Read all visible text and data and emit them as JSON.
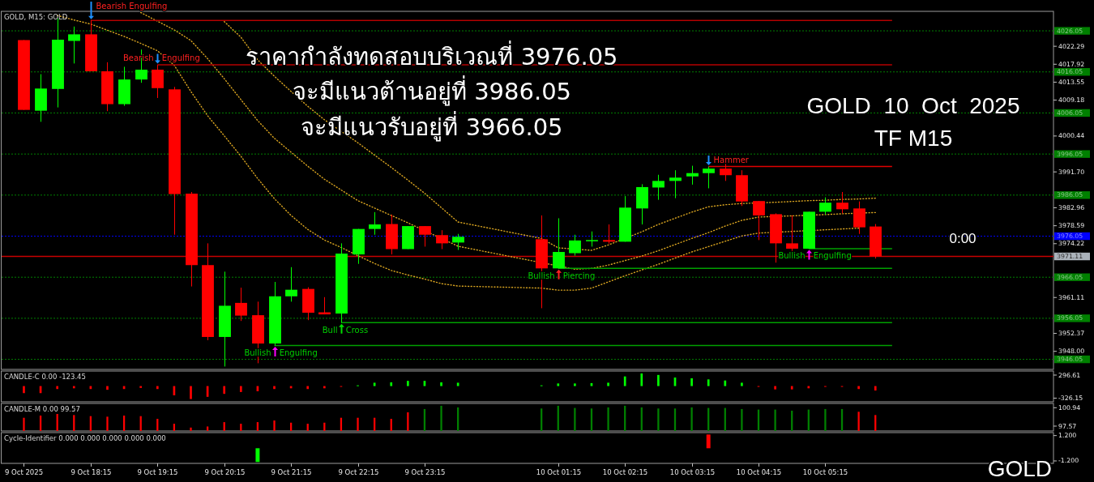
{
  "chart_data": [
    {
      "type": "candlestick",
      "title": "GOLD, M15: GOLD",
      "x": [
        "2025-10-09T17:15",
        "2025-10-09T17:30",
        "2025-10-09T17:45",
        "2025-10-09T18:00",
        "2025-10-09T18:15",
        "2025-10-09T18:30",
        "2025-10-09T18:45",
        "2025-10-09T19:00",
        "2025-10-09T19:15",
        "2025-10-09T19:30",
        "2025-10-09T19:45",
        "2025-10-09T20:00",
        "2025-10-09T20:15",
        "2025-10-09T20:30",
        "2025-10-09T20:45",
        "2025-10-09T21:00",
        "2025-10-09T21:15",
        "2025-10-09T21:30",
        "2025-10-09T21:45",
        "2025-10-09T22:00",
        "2025-10-09T22:15",
        "2025-10-09T22:30",
        "2025-10-09T22:45",
        "2025-10-09T23:00",
        "2025-10-09T23:15",
        "2025-10-09T23:30",
        "2025-10-09T23:45",
        "2025-10-10T01:00",
        "2025-10-10T01:15",
        "2025-10-10T01:30",
        "2025-10-10T01:45",
        "2025-10-10T02:00",
        "2025-10-10T02:15",
        "2025-10-10T02:30",
        "2025-10-10T02:45",
        "2025-10-10T03:00",
        "2025-10-10T03:15",
        "2025-10-10T03:30",
        "2025-10-10T03:45",
        "2025-10-10T04:00",
        "2025-10-10T04:15",
        "2025-10-10T04:30",
        "2025-10-10T04:45",
        "2025-10-10T05:00",
        "2025-10-10T05:15",
        "2025-10-10T05:30",
        "2025-10-10T05:45",
        "2025-10-10T06:00"
      ],
      "ohlc": [
        [
          4023.8,
          4023.8,
          4006.8,
          4006.8
        ],
        [
          4006.6,
          4015.5,
          4003.9,
          4012.0
        ],
        [
          4011.9,
          4029.1,
          4007.4,
          4023.9
        ],
        [
          4023.6,
          4027.1,
          4018.1,
          4025.2
        ],
        [
          4025.2,
          4028.6,
          4016.2,
          4016.2
        ],
        [
          4016.2,
          4018.4,
          4006.5,
          4008.2
        ],
        [
          4008.2,
          4017.3,
          4007.8,
          4014.2
        ],
        [
          4014.2,
          4021.5,
          4013.4,
          4016.6
        ],
        [
          4016.6,
          4017.8,
          4009.7,
          4012.1
        ],
        [
          4011.8,
          4012.4,
          3976.4,
          3986.3
        ],
        [
          3986.4,
          3986.8,
          3963.8,
          3969.0
        ],
        [
          3969.0,
          3974.3,
          3950.7,
          3951.5
        ],
        [
          3951.5,
          3967.4,
          3944.3,
          3959.1
        ],
        [
          3959.8,
          3963.5,
          3955.4,
          3956.7
        ],
        [
          3956.8,
          3960.1,
          3945.1,
          3949.9
        ],
        [
          3949.9,
          3964.9,
          3949.4,
          3961.4
        ],
        [
          3961.4,
          3968.5,
          3960.1,
          3963.0
        ],
        [
          3963.2,
          3963.6,
          3955.6,
          3957.4
        ],
        [
          3957.5,
          3961.2,
          3957.0,
          3957.0
        ],
        [
          3957.2,
          3974.3,
          3955.0,
          3971.8
        ],
        [
          3971.6,
          3977.8,
          3969.3,
          3977.8
        ],
        [
          3977.8,
          3981.9,
          3976.4,
          3978.9
        ],
        [
          3979.0,
          3981.3,
          3971.6,
          3972.9
        ],
        [
          3972.9,
          3978.5,
          3972.9,
          3978.5
        ],
        [
          3978.5,
          3978.5,
          3973.5,
          3976.4
        ],
        [
          3976.3,
          3977.5,
          3972.9,
          3974.3
        ],
        [
          3974.5,
          3976.6,
          3972.7,
          3975.9
        ],
        [
          3975.3,
          3981.1,
          3958.5,
          3968.2
        ],
        [
          3968.2,
          3980.4,
          3968.2,
          3972.2
        ],
        [
          3971.9,
          3976.4,
          3971.3,
          3975.0
        ],
        [
          3974.8,
          3977.2,
          3973.5,
          3975.1
        ],
        [
          3975.1,
          3978.9,
          3974.2,
          3974.7
        ],
        [
          3974.7,
          3985.8,
          3974.7,
          3983.0
        ],
        [
          3982.8,
          3988.7,
          3978.9,
          3988.0
        ],
        [
          3987.9,
          3991.0,
          3984.9,
          3989.5
        ],
        [
          3989.5,
          3992.1,
          3985.3,
          3990.3
        ],
        [
          3990.6,
          3993.2,
          3988.6,
          3991.4
        ],
        [
          3991.4,
          3993.0,
          3987.7,
          3992.5
        ],
        [
          3992.5,
          3994.4,
          3989.5,
          3990.9
        ],
        [
          3990.9,
          3992.1,
          3983.4,
          3984.5
        ],
        [
          3984.6,
          3984.6,
          3975.1,
          3981.1
        ],
        [
          3981.4,
          3981.6,
          3969.6,
          3974.3
        ],
        [
          3974.3,
          3981.1,
          3972.2,
          3973.0
        ],
        [
          3973.0,
          3982.0,
          3973.0,
          3982.0
        ],
        [
          3982.0,
          3985.5,
          3981.3,
          3984.2
        ],
        [
          3984.2,
          3986.8,
          3981.6,
          3982.6
        ],
        [
          3982.8,
          3984.5,
          3976.6,
          3978.2
        ],
        [
          3978.4,
          3979.0,
          3970.6,
          3971.1
        ]
      ],
      "colors": [
        "#ff0000",
        "#00ff00",
        "#00ff00",
        "#00ff00",
        "#ff0000",
        "#ff0000",
        "#00ff00",
        "#00ff00",
        "#ff0000",
        "#ff0000",
        "#ff0000",
        "#ff0000",
        "#00ff00",
        "#ff0000",
        "#ff0000",
        "#00ff00",
        "#00ff00",
        "#ff0000",
        "#ff0000",
        "#00ff00",
        "#00ff00",
        "#00ff00",
        "#ff0000",
        "#00ff00",
        "#ff0000",
        "#ff0000",
        "#00ff00",
        "#ff0000",
        "#00ff00",
        "#00ff00",
        "#00ff00",
        "#ff0000",
        "#00ff00",
        "#00ff00",
        "#00ff00",
        "#00ff00",
        "#00ff00",
        "#00ff00",
        "#ff0000",
        "#ff0000",
        "#ff0000",
        "#ff0000",
        "#ff0000",
        "#00ff00",
        "#00ff00",
        "#ff0000",
        "#ff0000",
        "#ff0000"
      ],
      "xlim": [
        "2025-10-09T16:55",
        "2025-10-10T08:40"
      ],
      "ylim": [
        3943.6,
        4030.8
      ],
      "yticks": [
        4022.29,
        4017.92,
        4013.55,
        4009.18,
        4000.44,
        {
          "value": 3991.7,
          "label": "3991.70"
        },
        3982.96,
        3978.59,
        3974.22,
        3961.11,
        3952.37,
        {
          "value": 3948,
          "label": "3948.00"
        }
      ],
      "tick_labels": "y",
      "series": [
        {
          "type": "line",
          "color": "#daa520",
          "line_style": "dotted",
          "values": [
            null,
            null,
            null,
            null,
            null,
            null,
            null,
            null,
            null,
            null,
            null,
            null,
            4028.3,
            4024.5,
            4019.0,
            4015.0,
            4011.3,
            4007.7,
            4004.4,
            4001.6,
            3998.8,
            3995.8,
            3992.8,
            3989.7,
            3986.5,
            3983.0,
            3979.5,
            3975.5,
            3973.2,
            null,
            3972.6,
            3973.9,
            null,
            3977.1,
            3978.9,
            3980.4,
            3981.9,
            3983.2,
            3983.7,
            3984.0,
            null,
            3984.3,
            3984.5,
            3984.7,
            3984.8,
            3985.0,
            3985.1,
            3985.3
          ]
        },
        {
          "type": "line",
          "color": "#daa520",
          "line_style": "dotted",
          "values": [
            null,
            null,
            null,
            null,
            null,
            null,
            null,
            4030.5,
            4028.4,
            4026.3,
            4023.7,
            4019.3,
            4014.4,
            4009.3,
            4004.2,
            3999.9,
            3996.5,
            3993.1,
            3989.9,
            3987.3,
            3984.7,
            3982.9,
            3981.1,
            3979.3,
            null,
            null,
            3973.6,
            null,
            null,
            3968.0,
            3968.2,
            3969.0,
            3970.1,
            3971.2,
            3972.5,
            3974.0,
            3975.5,
            3976.9,
            3978.5,
            3979.9,
            3980.7,
            null,
            3981.0,
            null,
            3981.3,
            3981.5,
            null,
            3981.8
          ]
        },
        {
          "type": "line",
          "color": "#daa520",
          "line_style": "dotted",
          "values": [
            null,
            null,
            4029.8,
            4028.7,
            4027.7,
            4026.2,
            4024.7,
            4023.0,
            4021.2,
            4017.7,
            4011.3,
            4005.4,
            4000.5,
            3995.5,
            3990.1,
            3985.2,
            3981.1,
            3977.7,
            3975.1,
            3973.3,
            3971.3,
            3969.4,
            3967.7,
            3966.6,
            3965.6,
            3964.5,
            3963.9,
            3963.4,
            3962.9,
            3962.9,
            3963.4,
            3964.9,
            3966.4,
            3967.8,
            3969.2,
            3970.7,
            3972.2,
            3973.5,
            3974.8,
            3976.1,
            3976.8,
            null,
            3977.2,
            null,
            3977.6,
            3977.8,
            3978.0,
            null
          ]
        },
        {
          "type": "line",
          "color": "#b40000",
          "line_style": "solid",
          "x": [
            "2025-10-09T18:15",
            "2025-10-10T06:15"
          ],
          "values": [
            4028.6,
            4028.6
          ]
        },
        {
          "type": "line",
          "color": "#b40000",
          "line_style": "solid",
          "x": [
            "2025-10-09T19:15",
            "2025-10-10T06:15"
          ],
          "values": [
            4017.8,
            4017.8
          ]
        },
        {
          "type": "line",
          "color": "#e00000",
          "line_style": "solid",
          "x": [
            "2025-10-10T03:30",
            "2025-10-10T06:15"
          ],
          "values": [
            3993.0,
            3993.0
          ]
        },
        {
          "type": "line",
          "color": "#00a000",
          "line_style": "solid",
          "x": [
            "2025-10-09T21:00",
            "2025-10-10T06:15"
          ],
          "values": [
            3949.4,
            3949.4
          ]
        },
        {
          "type": "line",
          "color": "#00a000",
          "line_style": "solid",
          "x": [
            "2025-10-09T22:00",
            "2025-10-10T06:15"
          ],
          "values": [
            3955.0,
            3955.0
          ]
        },
        {
          "type": "line",
          "color": "#00a000",
          "line_style": "solid",
          "x": [
            "2025-10-10T01:15",
            "2025-10-10T06:15"
          ],
          "values": [
            3968.2,
            3968.2
          ]
        },
        {
          "type": "line",
          "color": "#00a000",
          "line_style": "solid",
          "x": [
            "2025-10-10T05:00",
            "2025-10-10T06:15"
          ],
          "values": [
            3973.0,
            3973.0
          ]
        }
      ],
      "ref_lines": [
        {
          "axis": "y",
          "value": 4026.05,
          "label": "4026.05",
          "color": "#008000",
          "line_style": "dotted"
        },
        {
          "axis": "y",
          "value": 4016.05,
          "label": "4016.05",
          "color": "#008000",
          "line_style": "dotted"
        },
        {
          "axis": "y",
          "value": 4006.05,
          "label": "4006.05",
          "color": "#008000",
          "line_style": "dotted"
        },
        {
          "axis": "y",
          "value": 3996.05,
          "label": "3996.05",
          "color": "#008000",
          "line_style": "dotted"
        },
        {
          "axis": "y",
          "value": 3986.05,
          "label": "3986.05",
          "color": "#008000",
          "line_style": "dotted"
        },
        {
          "axis": "y",
          "value": 3976.05,
          "label": "3976.05",
          "color": "#0000ff",
          "line_style": "dotted"
        },
        {
          "axis": "y",
          "value": 3966.05,
          "label": "3966.05",
          "color": "#008000",
          "line_style": "dotted"
        },
        {
          "axis": "y",
          "value": 3956.05,
          "label": "3956.05",
          "color": "#008000",
          "line_style": "dotted"
        },
        {
          "axis": "y",
          "value": 3946.05,
          "label": "3946.05",
          "color": "#008000",
          "line_style": "dotted"
        },
        {
          "axis": "y",
          "value": 3971.11,
          "label": "3971.11",
          "color": "#c80000",
          "line_style": "solid"
        }
      ],
      "annotations": [
        {
          "text": "Bearish Engulfing",
          "x": "2025-10-09T18:15",
          "y": 4028.6
        },
        {
          "text": "Bearish Engulfing",
          "x": "2025-10-09T19:15",
          "y": 4017.8
        },
        {
          "text": "Bullish Engulfing",
          "x": "2025-10-09T21:00",
          "y": 3949.4
        },
        {
          "text": "Bull Cross",
          "x": "2025-10-09T22:00",
          "y": 3955.0
        },
        {
          "text": "Bullish Piercing",
          "x": "2025-10-10T01:15",
          "y": 3968.2
        },
        {
          "text": "Hammer",
          "x": "2025-10-10T03:30",
          "y": 3993.0
        },
        {
          "text": "Bullish Engulfing",
          "x": "2025-10-10T05:00",
          "y": 3973.0
        },
        "ราคากำลังทดสอบบริเวณที่ 3976.05",
        "จะมีแนวต้านอยู่ที่ 3986.05",
        "จะมีแนวรับอยู่ที่ 3966.05",
        "GOLD  10  Oct  2025",
        "TF M15",
        "0:00"
      ]
    },
    {
      "type": "bar",
      "title": "CANDLE-C 0.00 -123.45",
      "x": [
        "2025-10-09T17:15",
        "2025-10-09T17:30",
        "2025-10-09T17:45",
        "2025-10-09T18:00",
        "2025-10-09T18:15",
        "2025-10-09T18:30",
        "2025-10-09T18:45",
        "2025-10-09T19:00",
        "2025-10-09T19:15",
        "2025-10-09T19:30",
        "2025-10-09T19:45",
        "2025-10-09T20:00",
        "2025-10-09T20:15",
        "2025-10-09T20:30",
        "2025-10-09T20:45",
        "2025-10-09T21:00",
        "2025-10-09T21:15",
        "2025-10-09T21:30",
        "2025-10-09T21:45",
        "2025-10-09T22:00",
        "2025-10-09T22:15",
        "2025-10-09T22:30",
        "2025-10-09T22:45",
        "2025-10-09T23:00",
        "2025-10-09T23:15",
        "2025-10-09T23:30",
        "2025-10-09T23:45",
        "2025-10-10T01:00",
        "2025-10-10T01:15",
        "2025-10-10T01:30",
        "2025-10-10T01:45",
        "2025-10-10T02:00",
        "2025-10-10T02:15",
        "2025-10-10T02:30",
        "2025-10-10T02:45",
        "2025-10-10T03:00",
        "2025-10-10T03:15",
        "2025-10-10T03:30",
        "2025-10-10T03:45",
        "2025-10-10T04:00",
        "2025-10-10T04:15",
        "2025-10-10T04:30",
        "2025-10-10T04:45",
        "2025-10-10T05:00",
        "2025-10-10T05:15",
        "2025-10-10T05:30",
        "2025-10-10T05:45",
        "2025-10-10T06:00"
      ],
      "values": [
        -190,
        -190,
        -80,
        -60,
        -80,
        -100,
        -80,
        -50,
        -80,
        -250,
        -350,
        -290,
        -210,
        -160,
        -140,
        -80,
        -60,
        -80,
        -60,
        -10,
        20,
        90,
        100,
        140,
        140,
        100,
        90,
        20,
        70,
        70,
        80,
        90,
        260,
        340,
        300,
        230,
        210,
        180,
        150,
        90,
        -20,
        -90,
        -90,
        -60,
        -10,
        -10,
        -80,
        -120
      ],
      "colors": [
        "#ff0000",
        "#ff0000",
        "#ff0000",
        "#ff0000",
        "#ff0000",
        "#ff0000",
        "#ff0000",
        "#ff0000",
        "#ff0000",
        "#ff0000",
        "#ff0000",
        "#ff0000",
        "#ff0000",
        "#ff0000",
        "#ff0000",
        "#ff0000",
        "#ff0000",
        "#ff0000",
        "#ff0000",
        "#ff0000",
        "#00ff00",
        "#00ff00",
        "#00ff00",
        "#00ff00",
        "#00ff00",
        "#00ff00",
        "#00ff00",
        "#00ff00",
        "#00ff00",
        "#00ff00",
        "#00ff00",
        "#00ff00",
        "#00ff00",
        "#00ff00",
        "#00ff00",
        "#00ff00",
        "#00ff00",
        "#00ff00",
        "#00ff00",
        "#00ff00",
        "#ff0000",
        "#ff0000",
        "#ff0000",
        "#ff0000",
        "#ff0000",
        "#ff0000",
        "#ff0000",
        "#ff0000"
      ],
      "xlim": [
        "2025-10-09T16:55",
        "2025-10-10T08:40"
      ],
      "ylim": [
        -424.5,
        405.9
      ],
      "yticks": [
        296.61,
        -326.15
      ],
      "tick_labels": "y"
    },
    {
      "type": "bar",
      "title": "CANDLE-M 0.00 99.57",
      "x": [
        "2025-10-09T17:15",
        "2025-10-09T17:30",
        "2025-10-09T17:45",
        "2025-10-09T18:00",
        "2025-10-09T18:15",
        "2025-10-09T18:30",
        "2025-10-09T18:45",
        "2025-10-09T19:00",
        "2025-10-09T19:15",
        "2025-10-09T19:30",
        "2025-10-09T19:45",
        "2025-10-09T20:00",
        "2025-10-09T20:15",
        "2025-10-09T20:30",
        "2025-10-09T20:45",
        "2025-10-09T21:00",
        "2025-10-09T21:15",
        "2025-10-09T21:30",
        "2025-10-09T21:45",
        "2025-10-09T22:00",
        "2025-10-09T22:15",
        "2025-10-09T22:30",
        "2025-10-09T22:45",
        "2025-10-09T23:00",
        "2025-10-09T23:15",
        "2025-10-09T23:30",
        "2025-10-09T23:45",
        "2025-10-10T01:00",
        "2025-10-10T01:15",
        "2025-10-10T01:30",
        "2025-10-10T01:45",
        "2025-10-10T02:00",
        "2025-10-10T02:15",
        "2025-10-10T02:30",
        "2025-10-10T02:45",
        "2025-10-10T03:00",
        "2025-10-10T03:15",
        "2025-10-10T03:30",
        "2025-10-10T03:45",
        "2025-10-10T04:00",
        "2025-10-10T04:15",
        "2025-10-10T04:30",
        "2025-10-10T04:45",
        "2025-10-10T05:00",
        "2025-10-10T05:15",
        "2025-10-10T05:30",
        "2025-10-10T05:45",
        "2025-10-10T06:00"
      ],
      "values": [
        99.1,
        99.5,
        99.8,
        99.6,
        99.4,
        99.3,
        99.5,
        99.4,
        98.9,
        98.0,
        97.3,
        97.5,
        98.3,
        98.0,
        98.3,
        98.6,
        98.2,
        98.0,
        98.2,
        99.1,
        99.1,
        99.1,
        98.9,
        100.1,
        100.7,
        101.3,
        101.0,
        100.8,
        101.3,
        100.9,
        100.8,
        101.0,
        101.3,
        101.0,
        100.8,
        100.8,
        101.0,
        100.9,
        100.9,
        100.7,
        100.6,
        100.6,
        100.4,
        100.6,
        100.7,
        100.7,
        100.2,
        99.6
      ],
      "colors": [
        "#ff0000",
        "#ff0000",
        "#ff0000",
        "#ff0000",
        "#ff0000",
        "#ff0000",
        "#ff0000",
        "#ff0000",
        "#ff0000",
        "#ff0000",
        "#ff0000",
        "#ff0000",
        "#ff0000",
        "#ff0000",
        "#ff0000",
        "#ff0000",
        "#ff0000",
        "#ff0000",
        "#ff0000",
        "#ff0000",
        "#ff0000",
        "#ff0000",
        "#ff0000",
        "#ff0000",
        "#008000",
        "#008000",
        "#008000",
        "#008000",
        "#008000",
        "#008000",
        "#008000",
        "#008000",
        "#008000",
        "#008000",
        "#008000",
        "#008000",
        "#008000",
        "#008000",
        "#008000",
        "#008000",
        "#008000",
        "#008000",
        "#008000",
        "#008000",
        "#008000",
        "#008000",
        "#ff0000",
        "#ff0000"
      ],
      "xlim": [
        "2025-10-09T16:55",
        "2025-10-10T08:40"
      ],
      "ylim": [
        96.68,
        101.73
      ],
      "yticks": [
        100.94,
        97.57
      ],
      "tick_labels": "y"
    },
    {
      "type": "bar",
      "title": "Cycle-Identifier 0.000 0.000 0.000 0.000 0.000",
      "x": [
        "2025-10-09T20:45",
        "2025-10-10T03:30"
      ],
      "values": [
        -1.3,
        1.3
      ],
      "colors": [
        "#00ff00",
        "#ff0000"
      ],
      "xlim": [
        "2025-10-09T16:55",
        "2025-10-10T08:40"
      ],
      "xticks": [
        {
          "value": "2025-10-09T17:15",
          "label": "9 Oct 2025"
        },
        {
          "value": "2025-10-09T18:15",
          "label": "9 Oct 18:15"
        },
        {
          "value": "2025-10-09T19:15",
          "label": "9 Oct 19:15"
        },
        {
          "value": "2025-10-09T20:15",
          "label": "9 Oct 20:15"
        },
        {
          "value": "2025-10-09T21:15",
          "label": "9 Oct 21:15"
        },
        {
          "value": "2025-10-09T22:15",
          "label": "9 Oct 22:15"
        },
        {
          "value": "2025-10-09T23:15",
          "label": "9 Oct 23:15"
        },
        {
          "value": "2025-10-10T01:15",
          "label": "10 Oct 01:15"
        },
        {
          "value": "2025-10-10T02:15",
          "label": "10 Oct 02:15"
        },
        {
          "value": "2025-10-10T03:15",
          "label": "10 Oct 03:15"
        },
        {
          "value": "2025-10-10T04:15",
          "label": "10 Oct 04:15"
        },
        {
          "value": "2025-10-10T05:15",
          "label": "10 Oct 05:15"
        }
      ],
      "ylim": [
        -1.43,
        1.48
      ],
      "yticks": [
        {
          "value": 1.2,
          "label": "1.200"
        },
        {
          "value": -1.2,
          "label": "-1.200"
        }
      ],
      "annotations": [
        "GOLD"
      ]
    }
  ]
}
